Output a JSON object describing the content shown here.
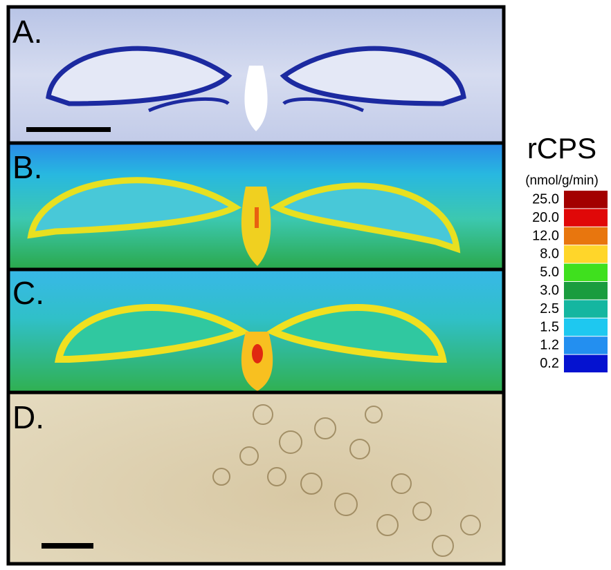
{
  "panels": [
    {
      "label": "A."
    },
    {
      "label": "B."
    },
    {
      "label": "C."
    },
    {
      "label": "D."
    }
  ],
  "legend": {
    "title": "rCPS",
    "unit": "(nmol/g/min)",
    "entries": [
      {
        "label": "25.0",
        "color": "#a30000"
      },
      {
        "label": "20.0",
        "color": "#e00808"
      },
      {
        "label": "12.0",
        "color": "#e8760e"
      },
      {
        "label": "8.0",
        "color": "#ffd62a"
      },
      {
        "label": "5.0",
        "color": "#3fe01e"
      },
      {
        "label": "3.0",
        "color": "#1a9c3e"
      },
      {
        "label": "2.5",
        "color": "#14b6a0"
      },
      {
        "label": "1.5",
        "color": "#1ec8f0"
      },
      {
        "label": "1.2",
        "color": "#238ff0"
      },
      {
        "label": "0.2",
        "color": "#0512d0"
      }
    ]
  }
}
